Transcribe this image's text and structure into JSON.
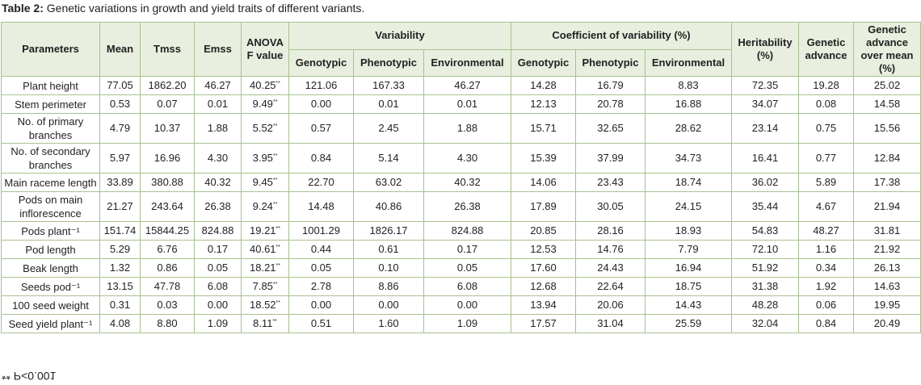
{
  "title": {
    "label": "Table 2:",
    "text": "Genetic variations in growth and yield traits of different variants."
  },
  "table": {
    "groups": [
      "Variability",
      "Coefficient of variability (%)"
    ],
    "columns": [
      "Parameters",
      "Mean",
      "Tmss",
      "Emss",
      "ANOVA F value",
      "Genotypic",
      "Phenotypic",
      "Environmental",
      "Genotypic",
      "Phenotypic",
      "Environmental",
      "Heritability (%)",
      "Genetic advance",
      "Genetic advance over mean (%)"
    ],
    "rows": [
      [
        "Plant height",
        "77.05",
        "1862.20",
        "46.27",
        {
          "value": "40.25",
          "sup": "**"
        },
        "121.06",
        "167.33",
        "46.27",
        "14.28",
        "16.79",
        "8.83",
        "72.35",
        "19.28",
        "25.02"
      ],
      [
        "Stem perimeter",
        "0.53",
        "0.07",
        "0.01",
        {
          "value": "9.49",
          "sup": "**"
        },
        "0.00",
        "0.01",
        "0.01",
        "12.13",
        "20.78",
        "16.88",
        "34.07",
        "0.08",
        "14.58"
      ],
      [
        "No. of primary branches",
        "4.79",
        "10.37",
        "1.88",
        {
          "value": "5.52",
          "sup": "**"
        },
        "0.57",
        "2.45",
        "1.88",
        "15.71",
        "32.65",
        "28.62",
        "23.14",
        "0.75",
        "15.56"
      ],
      [
        "No. of secondary branches",
        "5.97",
        "16.96",
        "4.30",
        {
          "value": "3.95",
          "sup": "**"
        },
        "0.84",
        "5.14",
        "4.30",
        "15.39",
        "37.99",
        "34.73",
        "16.41",
        "0.77",
        "12.84"
      ],
      [
        "Main raceme length",
        "33.89",
        "380.88",
        "40.32",
        {
          "value": "9.45",
          "sup": "**"
        },
        "22.70",
        "63.02",
        "40.32",
        "14.06",
        "23.43",
        "18.74",
        "36.02",
        "5.89",
        "17.38"
      ],
      [
        "Pods on main inflorescence",
        "21.27",
        "243.64",
        "26.38",
        {
          "value": "9.24",
          "sup": "**"
        },
        "14.48",
        "40.86",
        "26.38",
        "17.89",
        "30.05",
        "24.15",
        "35.44",
        "4.67",
        "21.94"
      ],
      [
        "Pods plant⁻¹",
        "151.74",
        "15844.25",
        "824.88",
        {
          "value": "19.21",
          "sup": "**"
        },
        "1001.29",
        "1826.17",
        "824.88",
        "20.85",
        "28.16",
        "18.93",
        "54.83",
        "48.27",
        "31.81"
      ],
      [
        "Pod length",
        "5.29",
        "6.76",
        "0.17",
        {
          "value": "40.61",
          "sup": "**"
        },
        "0.44",
        "0.61",
        "0.17",
        "12.53",
        "14.76",
        "7.79",
        "72.10",
        "1.16",
        "21.92"
      ],
      [
        "Beak length",
        "1.32",
        "0.86",
        "0.05",
        {
          "value": "18.21",
          "sup": "**"
        },
        "0.05",
        "0.10",
        "0.05",
        "17.60",
        "24.43",
        "16.94",
        "51.92",
        "0.34",
        "26.13"
      ],
      [
        "Seeds pod⁻¹",
        "13.15",
        "47.78",
        "6.08",
        {
          "value": "7.85",
          "sup": "**"
        },
        "2.78",
        "8.86",
        "6.08",
        "12.68",
        "22.64",
        "18.75",
        "31.38",
        "1.92",
        "14.63"
      ],
      [
        "100 seed weight",
        "0.31",
        "0.03",
        "0.00",
        {
          "value": "18.52",
          "sup": "**"
        },
        "0.00",
        "0.00",
        "0.00",
        "13.94",
        "20.06",
        "14.43",
        "48.28",
        "0.06",
        "19.95"
      ],
      [
        "Seed yield plant⁻¹",
        "4.08",
        "8.80",
        "1.09",
        {
          "value": "8.11",
          "sup": "**"
        },
        "0.51",
        "1.60",
        "1.09",
        "17.57",
        "31.04",
        "25.59",
        "32.04",
        "0.84",
        "20.49"
      ]
    ]
  },
  "footnote": "** P<0.001"
}
